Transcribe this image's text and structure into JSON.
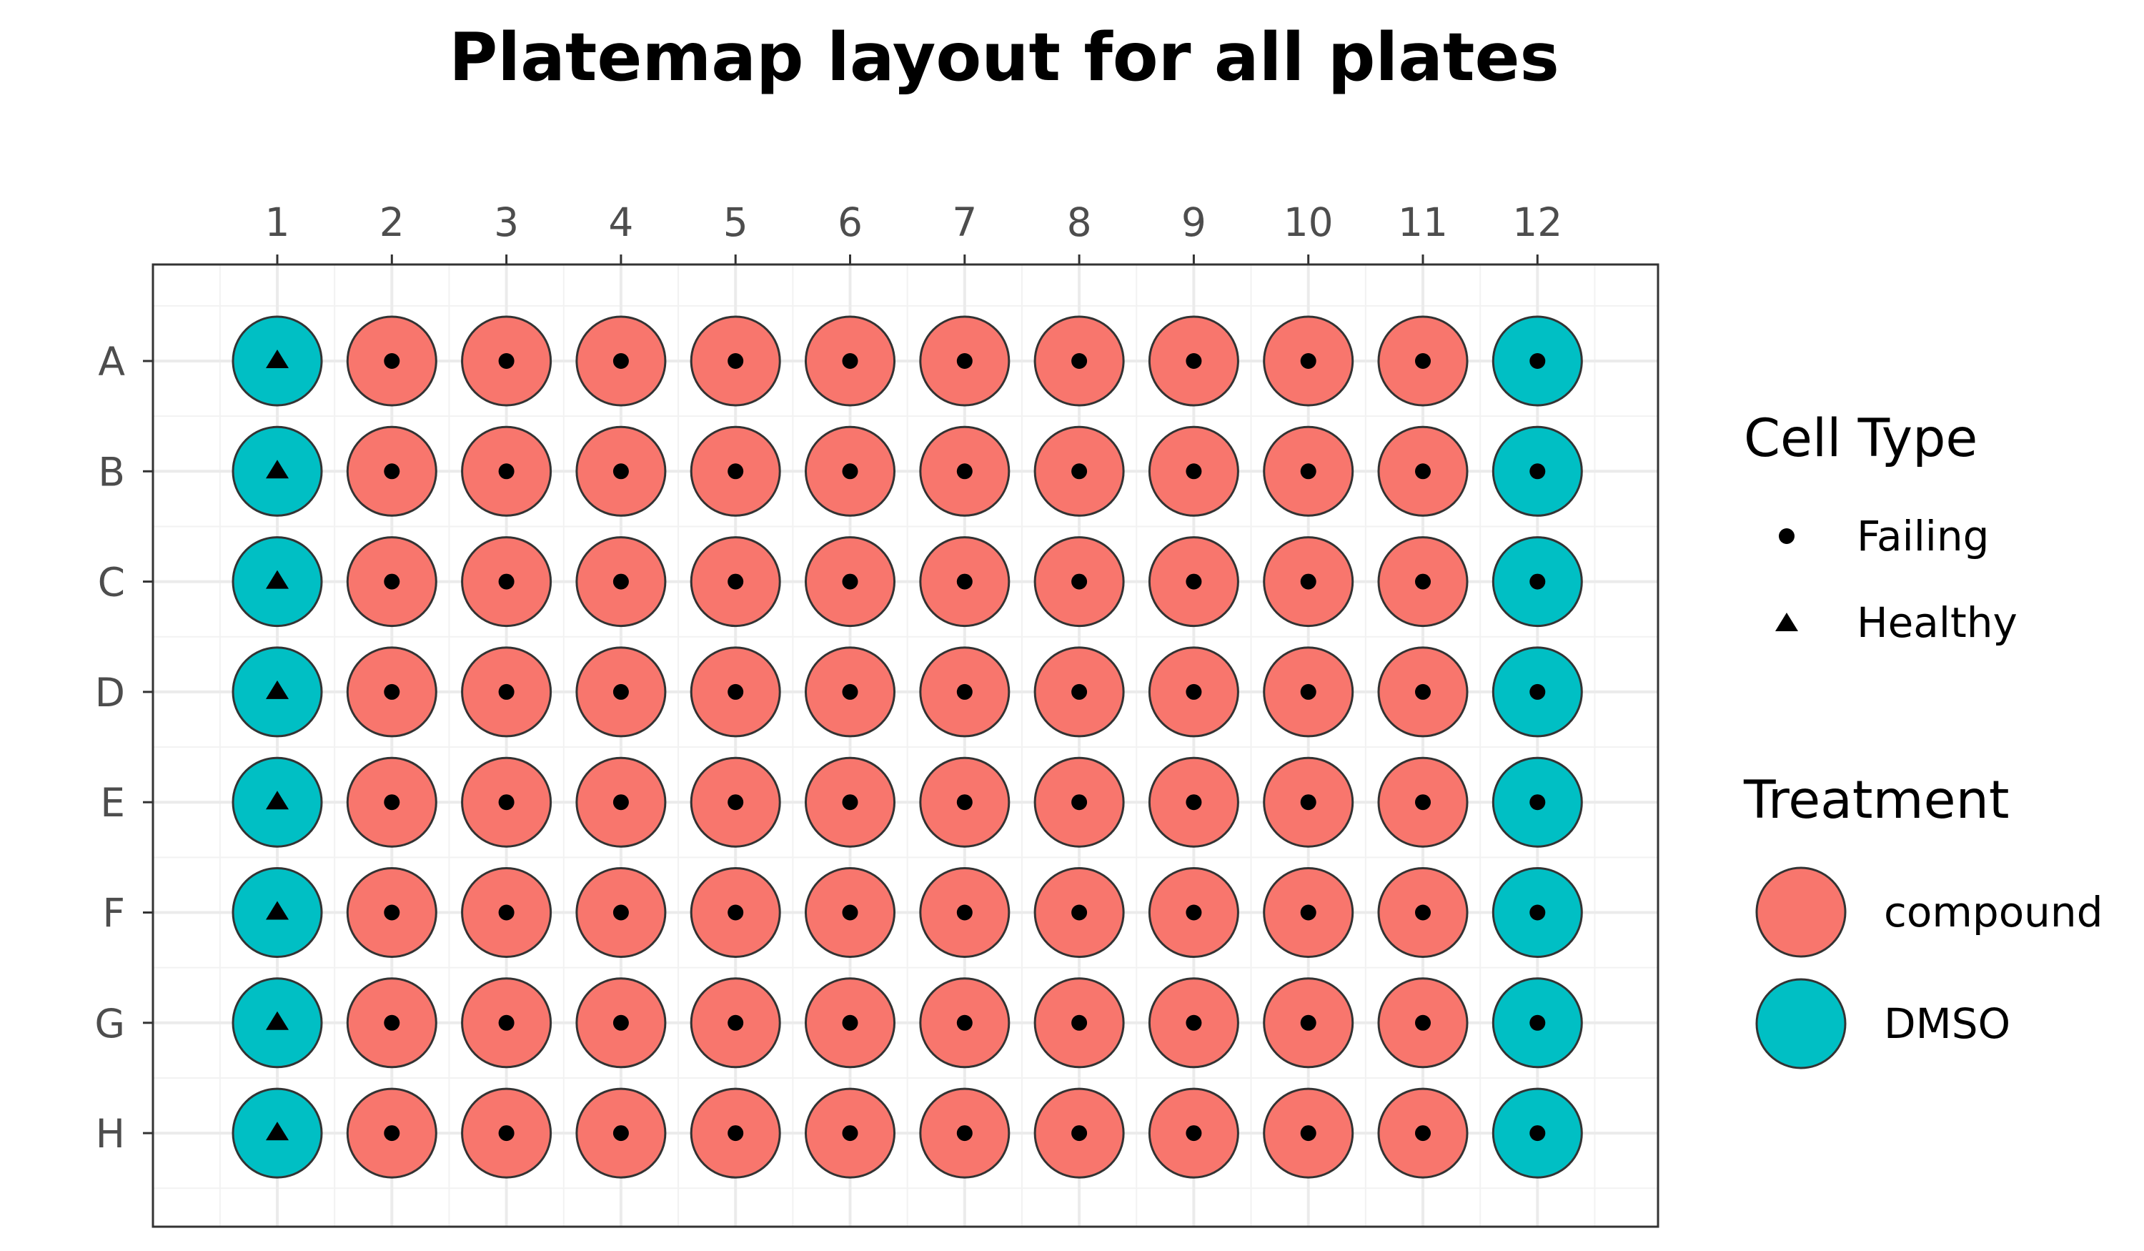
{
  "chart_data": {
    "type": "scatter",
    "title": "Platemap layout for all plates",
    "xlabel": "",
    "ylabel": "",
    "columns": [
      "1",
      "2",
      "3",
      "4",
      "5",
      "6",
      "7",
      "8",
      "9",
      "10",
      "11",
      "12"
    ],
    "rows": [
      "A",
      "B",
      "C",
      "D",
      "E",
      "F",
      "G",
      "H"
    ],
    "colors": {
      "compound": "#F8766D",
      "DMSO": "#00BFC4"
    },
    "cell_type_shapes": {
      "Failing": "circle",
      "Healthy": "triangle"
    },
    "legend": {
      "position": "right",
      "cell_type": {
        "title": "Cell Type",
        "entries": [
          "Failing",
          "Healthy"
        ]
      },
      "treatment": {
        "title": "Treatment",
        "entries": [
          "compound",
          "DMSO"
        ]
      }
    },
    "wells": [
      {
        "row": "A",
        "col": 1,
        "treatment": "DMSO",
        "cell_type": "Healthy"
      },
      {
        "row": "A",
        "col": 2,
        "treatment": "compound",
        "cell_type": "Failing"
      },
      {
        "row": "A",
        "col": 3,
        "treatment": "compound",
        "cell_type": "Failing"
      },
      {
        "row": "A",
        "col": 4,
        "treatment": "compound",
        "cell_type": "Failing"
      },
      {
        "row": "A",
        "col": 5,
        "treatment": "compound",
        "cell_type": "Failing"
      },
      {
        "row": "A",
        "col": 6,
        "treatment": "compound",
        "cell_type": "Failing"
      },
      {
        "row": "A",
        "col": 7,
        "treatment": "compound",
        "cell_type": "Failing"
      },
      {
        "row": "A",
        "col": 8,
        "treatment": "compound",
        "cell_type": "Failing"
      },
      {
        "row": "A",
        "col": 9,
        "treatment": "compound",
        "cell_type": "Failing"
      },
      {
        "row": "A",
        "col": 10,
        "treatment": "compound",
        "cell_type": "Failing"
      },
      {
        "row": "A",
        "col": 11,
        "treatment": "compound",
        "cell_type": "Failing"
      },
      {
        "row": "A",
        "col": 12,
        "treatment": "DMSO",
        "cell_type": "Failing"
      },
      {
        "row": "B",
        "col": 1,
        "treatment": "DMSO",
        "cell_type": "Healthy"
      },
      {
        "row": "B",
        "col": 2,
        "treatment": "compound",
        "cell_type": "Failing"
      },
      {
        "row": "B",
        "col": 3,
        "treatment": "compound",
        "cell_type": "Failing"
      },
      {
        "row": "B",
        "col": 4,
        "treatment": "compound",
        "cell_type": "Failing"
      },
      {
        "row": "B",
        "col": 5,
        "treatment": "compound",
        "cell_type": "Failing"
      },
      {
        "row": "B",
        "col": 6,
        "treatment": "compound",
        "cell_type": "Failing"
      },
      {
        "row": "B",
        "col": 7,
        "treatment": "compound",
        "cell_type": "Failing"
      },
      {
        "row": "B",
        "col": 8,
        "treatment": "compound",
        "cell_type": "Failing"
      },
      {
        "row": "B",
        "col": 9,
        "treatment": "compound",
        "cell_type": "Failing"
      },
      {
        "row": "B",
        "col": 10,
        "treatment": "compound",
        "cell_type": "Failing"
      },
      {
        "row": "B",
        "col": 11,
        "treatment": "compound",
        "cell_type": "Failing"
      },
      {
        "row": "B",
        "col": 12,
        "treatment": "DMSO",
        "cell_type": "Failing"
      },
      {
        "row": "C",
        "col": 1,
        "treatment": "DMSO",
        "cell_type": "Healthy"
      },
      {
        "row": "C",
        "col": 2,
        "treatment": "compound",
        "cell_type": "Failing"
      },
      {
        "row": "C",
        "col": 3,
        "treatment": "compound",
        "cell_type": "Failing"
      },
      {
        "row": "C",
        "col": 4,
        "treatment": "compound",
        "cell_type": "Failing"
      },
      {
        "row": "C",
        "col": 5,
        "treatment": "compound",
        "cell_type": "Failing"
      },
      {
        "row": "C",
        "col": 6,
        "treatment": "compound",
        "cell_type": "Failing"
      },
      {
        "row": "C",
        "col": 7,
        "treatment": "compound",
        "cell_type": "Failing"
      },
      {
        "row": "C",
        "col": 8,
        "treatment": "compound",
        "cell_type": "Failing"
      },
      {
        "row": "C",
        "col": 9,
        "treatment": "compound",
        "cell_type": "Failing"
      },
      {
        "row": "C",
        "col": 10,
        "treatment": "compound",
        "cell_type": "Failing"
      },
      {
        "row": "C",
        "col": 11,
        "treatment": "compound",
        "cell_type": "Failing"
      },
      {
        "row": "C",
        "col": 12,
        "treatment": "DMSO",
        "cell_type": "Failing"
      },
      {
        "row": "D",
        "col": 1,
        "treatment": "DMSO",
        "cell_type": "Healthy"
      },
      {
        "row": "D",
        "col": 2,
        "treatment": "compound",
        "cell_type": "Failing"
      },
      {
        "row": "D",
        "col": 3,
        "treatment": "compound",
        "cell_type": "Failing"
      },
      {
        "row": "D",
        "col": 4,
        "treatment": "compound",
        "cell_type": "Failing"
      },
      {
        "row": "D",
        "col": 5,
        "treatment": "compound",
        "cell_type": "Failing"
      },
      {
        "row": "D",
        "col": 6,
        "treatment": "compound",
        "cell_type": "Failing"
      },
      {
        "row": "D",
        "col": 7,
        "treatment": "compound",
        "cell_type": "Failing"
      },
      {
        "row": "D",
        "col": 8,
        "treatment": "compound",
        "cell_type": "Failing"
      },
      {
        "row": "D",
        "col": 9,
        "treatment": "compound",
        "cell_type": "Failing"
      },
      {
        "row": "D",
        "col": 10,
        "treatment": "compound",
        "cell_type": "Failing"
      },
      {
        "row": "D",
        "col": 11,
        "treatment": "compound",
        "cell_type": "Failing"
      },
      {
        "row": "D",
        "col": 12,
        "treatment": "DMSO",
        "cell_type": "Failing"
      },
      {
        "row": "E",
        "col": 1,
        "treatment": "DMSO",
        "cell_type": "Healthy"
      },
      {
        "row": "E",
        "col": 2,
        "treatment": "compound",
        "cell_type": "Failing"
      },
      {
        "row": "E",
        "col": 3,
        "treatment": "compound",
        "cell_type": "Failing"
      },
      {
        "row": "E",
        "col": 4,
        "treatment": "compound",
        "cell_type": "Failing"
      },
      {
        "row": "E",
        "col": 5,
        "treatment": "compound",
        "cell_type": "Failing"
      },
      {
        "row": "E",
        "col": 6,
        "treatment": "compound",
        "cell_type": "Failing"
      },
      {
        "row": "E",
        "col": 7,
        "treatment": "compound",
        "cell_type": "Failing"
      },
      {
        "row": "E",
        "col": 8,
        "treatment": "compound",
        "cell_type": "Failing"
      },
      {
        "row": "E",
        "col": 9,
        "treatment": "compound",
        "cell_type": "Failing"
      },
      {
        "row": "E",
        "col": 10,
        "treatment": "compound",
        "cell_type": "Failing"
      },
      {
        "row": "E",
        "col": 11,
        "treatment": "compound",
        "cell_type": "Failing"
      },
      {
        "row": "E",
        "col": 12,
        "treatment": "DMSO",
        "cell_type": "Failing"
      },
      {
        "row": "F",
        "col": 1,
        "treatment": "DMSO",
        "cell_type": "Healthy"
      },
      {
        "row": "F",
        "col": 2,
        "treatment": "compound",
        "cell_type": "Failing"
      },
      {
        "row": "F",
        "col": 3,
        "treatment": "compound",
        "cell_type": "Failing"
      },
      {
        "row": "F",
        "col": 4,
        "treatment": "compound",
        "cell_type": "Failing"
      },
      {
        "row": "F",
        "col": 5,
        "treatment": "compound",
        "cell_type": "Failing"
      },
      {
        "row": "F",
        "col": 6,
        "treatment": "compound",
        "cell_type": "Failing"
      },
      {
        "row": "F",
        "col": 7,
        "treatment": "compound",
        "cell_type": "Failing"
      },
      {
        "row": "F",
        "col": 8,
        "treatment": "compound",
        "cell_type": "Failing"
      },
      {
        "row": "F",
        "col": 9,
        "treatment": "compound",
        "cell_type": "Failing"
      },
      {
        "row": "F",
        "col": 10,
        "treatment": "compound",
        "cell_type": "Failing"
      },
      {
        "row": "F",
        "col": 11,
        "treatment": "compound",
        "cell_type": "Failing"
      },
      {
        "row": "F",
        "col": 12,
        "treatment": "DMSO",
        "cell_type": "Failing"
      },
      {
        "row": "G",
        "col": 1,
        "treatment": "DMSO",
        "cell_type": "Healthy"
      },
      {
        "row": "G",
        "col": 2,
        "treatment": "compound",
        "cell_type": "Failing"
      },
      {
        "row": "G",
        "col": 3,
        "treatment": "compound",
        "cell_type": "Failing"
      },
      {
        "row": "G",
        "col": 4,
        "treatment": "compound",
        "cell_type": "Failing"
      },
      {
        "row": "G",
        "col": 5,
        "treatment": "compound",
        "cell_type": "Failing"
      },
      {
        "row": "G",
        "col": 6,
        "treatment": "compound",
        "cell_type": "Failing"
      },
      {
        "row": "G",
        "col": 7,
        "treatment": "compound",
        "cell_type": "Failing"
      },
      {
        "row": "G",
        "col": 8,
        "treatment": "compound",
        "cell_type": "Failing"
      },
      {
        "row": "G",
        "col": 9,
        "treatment": "compound",
        "cell_type": "Failing"
      },
      {
        "row": "G",
        "col": 10,
        "treatment": "compound",
        "cell_type": "Failing"
      },
      {
        "row": "G",
        "col": 11,
        "treatment": "compound",
        "cell_type": "Failing"
      },
      {
        "row": "G",
        "col": 12,
        "treatment": "DMSO",
        "cell_type": "Failing"
      },
      {
        "row": "H",
        "col": 1,
        "treatment": "DMSO",
        "cell_type": "Healthy"
      },
      {
        "row": "H",
        "col": 2,
        "treatment": "compound",
        "cell_type": "Failing"
      },
      {
        "row": "H",
        "col": 3,
        "treatment": "compound",
        "cell_type": "Failing"
      },
      {
        "row": "H",
        "col": 4,
        "treatment": "compound",
        "cell_type": "Failing"
      },
      {
        "row": "H",
        "col": 5,
        "treatment": "compound",
        "cell_type": "Failing"
      },
      {
        "row": "H",
        "col": 6,
        "treatment": "compound",
        "cell_type": "Failing"
      },
      {
        "row": "H",
        "col": 7,
        "treatment": "compound",
        "cell_type": "Failing"
      },
      {
        "row": "H",
        "col": 8,
        "treatment": "compound",
        "cell_type": "Failing"
      },
      {
        "row": "H",
        "col": 9,
        "treatment": "compound",
        "cell_type": "Failing"
      },
      {
        "row": "H",
        "col": 10,
        "treatment": "compound",
        "cell_type": "Failing"
      },
      {
        "row": "H",
        "col": 11,
        "treatment": "compound",
        "cell_type": "Failing"
      },
      {
        "row": "H",
        "col": 12,
        "treatment": "DMSO",
        "cell_type": "Failing"
      }
    ]
  }
}
